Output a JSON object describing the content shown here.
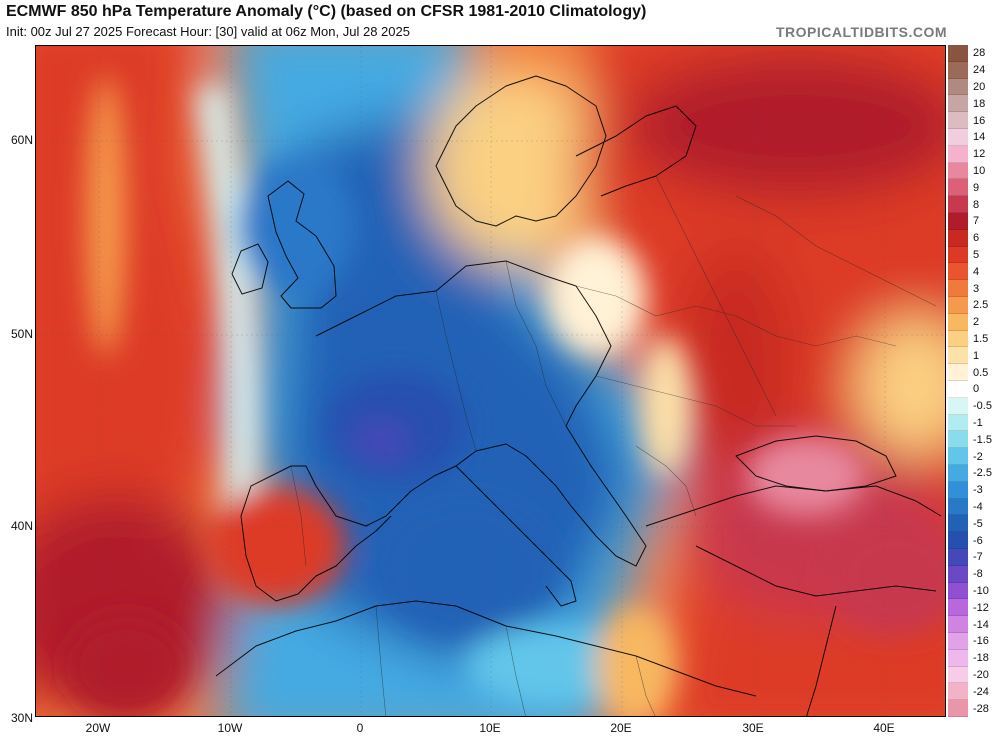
{
  "header": {
    "title": "ECMWF 850 hPa Temperature Anomaly (°C) (based on CFSR 1981-2010 Climatology)",
    "subtitle": "Init: 00z Jul 27 2025   Forecast Hour: [30]   valid at 06z Mon, Jul 28 2025",
    "brand": "TROPICALTIDBITS.COM"
  },
  "axes": {
    "lat_labels": [
      "60N",
      "50N",
      "40N",
      "30N"
    ],
    "lon_labels": [
      "20W",
      "10W",
      "0",
      "10E",
      "20E",
      "30E",
      "40E"
    ]
  },
  "colorbar": {
    "levels": [
      {
        "label": "28",
        "color": "#8a5540"
      },
      {
        "label": "24",
        "color": "#9c6a58"
      },
      {
        "label": "20",
        "color": "#b08a80"
      },
      {
        "label": "18",
        "color": "#c6a6a4"
      },
      {
        "label": "16",
        "color": "#dcbcc0"
      },
      {
        "label": "14",
        "color": "#f0cede"
      },
      {
        "label": "12",
        "color": "#f4b2cc"
      },
      {
        "label": "10",
        "color": "#e8889e"
      },
      {
        "label": "9",
        "color": "#dc6078"
      },
      {
        "label": "8",
        "color": "#c8384e"
      },
      {
        "label": "7",
        "color": "#b01c2a"
      },
      {
        "label": "6",
        "color": "#c82a22"
      },
      {
        "label": "5",
        "color": "#dd3a26"
      },
      {
        "label": "4",
        "color": "#ea5530"
      },
      {
        "label": "3",
        "color": "#f07a3c"
      },
      {
        "label": "2.5",
        "color": "#f59a4c"
      },
      {
        "label": "2",
        "color": "#f8b860"
      },
      {
        "label": "1.5",
        "color": "#fbd082"
      },
      {
        "label": "1",
        "color": "#fde2a8"
      },
      {
        "label": "0.5",
        "color": "#fff2d6"
      },
      {
        "label": "0",
        "color": "#ffffff"
      },
      {
        "label": "-0.5",
        "color": "#d8f6f6"
      },
      {
        "label": "-1",
        "color": "#b2ecf0"
      },
      {
        "label": "-1.5",
        "color": "#88dcec"
      },
      {
        "label": "-2",
        "color": "#62c6ea"
      },
      {
        "label": "-2.5",
        "color": "#44aae2"
      },
      {
        "label": "-3",
        "color": "#3290d8"
      },
      {
        "label": "-4",
        "color": "#2a78c8"
      },
      {
        "label": "-5",
        "color": "#2262b6"
      },
      {
        "label": "-6",
        "color": "#2650b0"
      },
      {
        "label": "-7",
        "color": "#4448b8"
      },
      {
        "label": "-8",
        "color": "#6a48c6"
      },
      {
        "label": "-10",
        "color": "#9050d2"
      },
      {
        "label": "-12",
        "color": "#b868dc"
      },
      {
        "label": "-14",
        "color": "#d084e2"
      },
      {
        "label": "-16",
        "color": "#e2a2e8"
      },
      {
        "label": "-18",
        "color": "#eeb8ec"
      },
      {
        "label": "-20",
        "color": "#f6cce8"
      },
      {
        "label": "-24",
        "color": "#f2b2c8"
      },
      {
        "label": "-28",
        "color": "#e896a8"
      }
    ]
  }
}
